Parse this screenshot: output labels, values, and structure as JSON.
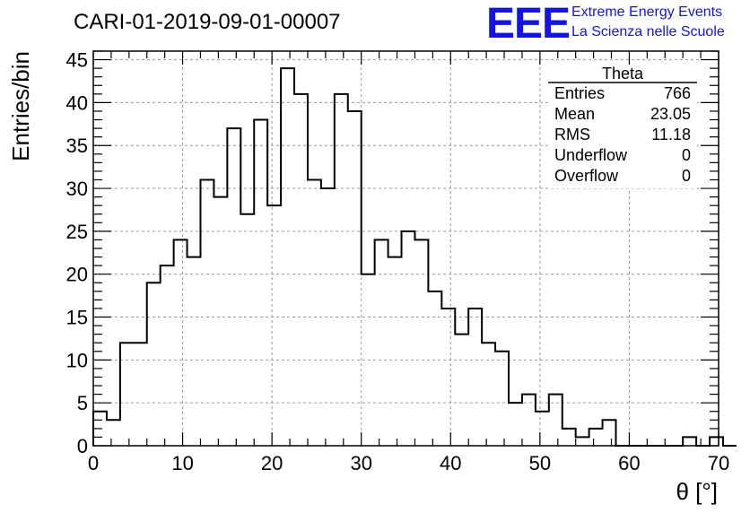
{
  "chart_data": {
    "type": "bar",
    "title": "CARI-01-2019-09-01-00007",
    "xlabel": "θ [°]",
    "ylabel": "Entries/bin",
    "xlim": [
      0,
      70
    ],
    "ylim": [
      0,
      46
    ],
    "grid": true,
    "bin_width": 1.5,
    "x_ticks": [
      0,
      10,
      20,
      30,
      40,
      50,
      60,
      70
    ],
    "y_ticks": [
      0,
      5,
      10,
      15,
      20,
      25,
      30,
      35,
      40,
      45
    ],
    "values": [
      4,
      3,
      12,
      12,
      19,
      21,
      24,
      22,
      31,
      29,
      37,
      27,
      38,
      28,
      44,
      41,
      31,
      30,
      41,
      39,
      20,
      24,
      22,
      25,
      24,
      18,
      16,
      13,
      16,
      12,
      11,
      5,
      6,
      4,
      6,
      2,
      1,
      2,
      3,
      0,
      0,
      0,
      0,
      0,
      1,
      0,
      1,
      0
    ]
  },
  "stats_box": {
    "name": "Theta",
    "rows": [
      {
        "label": "Entries",
        "value": "766"
      },
      {
        "label": "Mean",
        "value": "23.05"
      },
      {
        "label": "RMS",
        "value": "11.18"
      },
      {
        "label": "Underflow",
        "value": "0"
      },
      {
        "label": "Overflow",
        "value": "0"
      }
    ]
  },
  "logo": {
    "mark": "EEE",
    "line1": "Extreme Energy Events",
    "line2": "La Scienza nelle Scuole",
    "color": "#1414e6"
  }
}
